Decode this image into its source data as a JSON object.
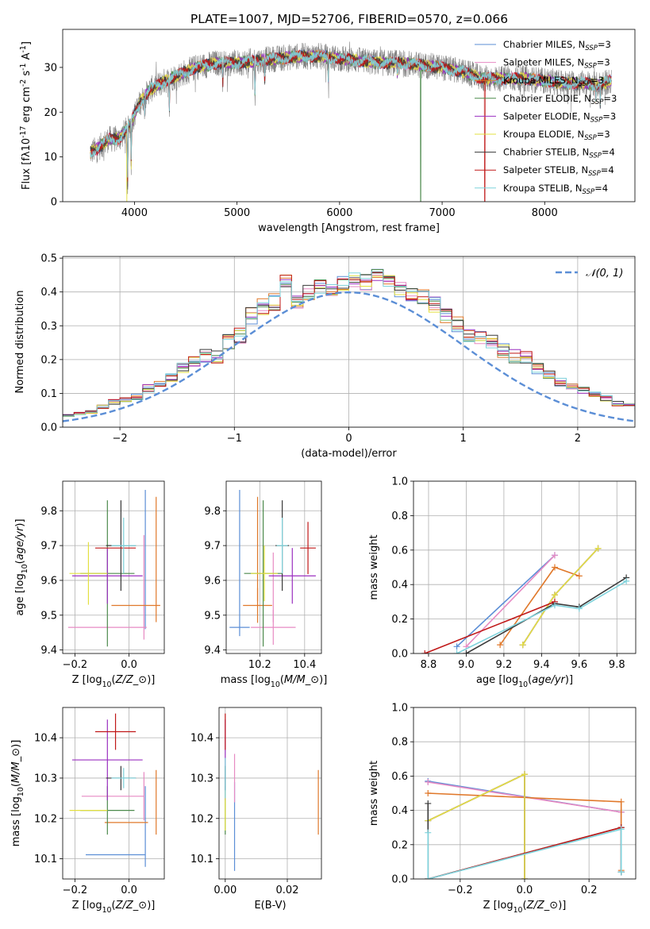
{
  "title": "PLATE=1007, MJD=52706, FIBERID=0570, z=0.066",
  "colors": {
    "Chabrier MILES": "#5b8ed6",
    "Salpeter MILES": "#e78ac3",
    "Kroupa MILES": "#e0782a",
    "Chabrier ELODIE": "#4d8a4d",
    "Salpeter ELODIE": "#9b30c0",
    "Kroupa ELODIE": "#e3e040",
    "Chabrier STELIB": "#3a3a3a",
    "Salpeter STELIB": "#c01818",
    "Kroupa STELIB": "#7fd3dc",
    "data": "#808080",
    "normal": "#5b8ed6",
    "Kroupa ELODIE (points)": "#9acd32"
  },
  "chart_data": [
    {
      "id": "spectrum",
      "type": "line",
      "xlabel": "wavelength [Angstrom, rest frame]",
      "ylabel": "Flux [f$\\lambda$10$^{-17}$ erg cm$^{-2}$ s$^{-1}$ A$^{-1}$]",
      "ylabel_parts": [
        "Flux [f",
        "λ",
        "10",
        "−17",
        " erg cm",
        "−2",
        " s",
        "−1",
        " A",
        "−1",
        "]"
      ],
      "xlim": [
        3300,
        8880
      ],
      "ylim": [
        0,
        38.5
      ],
      "xticks": [
        4000,
        5000,
        6000,
        7000,
        8000
      ],
      "yticks": [
        0,
        10,
        20,
        30
      ],
      "legend_position": "upper right",
      "series_names": [
        "Chabrier MILES",
        "Salpeter MILES",
        "Kroupa MILES",
        "Chabrier ELODIE",
        "Salpeter ELODIE",
        "Kroupa ELODIE",
        "Chabrier STELIB",
        "Salpeter STELIB",
        "Kroupa STELIB"
      ],
      "n_ssp": [
        "3",
        "3",
        "3",
        "3",
        "3",
        "3",
        "4",
        "4",
        "4"
      ],
      "legend_suffix_base": "N",
      "legend_suffix_sub": "SSP",
      "continuum": {
        "wavelength": [
          3570,
          3650,
          3750,
          3850,
          3950,
          4050,
          4150,
          4300,
          4450,
          4600,
          4800,
          5000,
          5200,
          5400,
          5600,
          5800,
          6000,
          6200,
          6400,
          6600,
          6800,
          7000,
          7200,
          7400,
          7600,
          7800,
          8000,
          8200,
          8400,
          8500,
          8650
        ],
        "flux": [
          11,
          12,
          14,
          14,
          17,
          22,
          25,
          27,
          28.5,
          30,
          31,
          31,
          31.5,
          32,
          32.5,
          32.5,
          32,
          31.5,
          31,
          31,
          30.5,
          30,
          29,
          27.5,
          27.5,
          27.5,
          27,
          26.5,
          26.5,
          26,
          27
        ]
      },
      "absorption_dips": [
        {
          "wavelength": 3933,
          "flux": 4
        },
        {
          "wavelength": 3968,
          "flux": 8
        },
        {
          "wavelength": 4102,
          "flux": 20
        },
        {
          "wavelength": 4340,
          "flux": 21
        },
        {
          "wavelength": 4861,
          "flux": 26
        },
        {
          "wavelength": 5175,
          "flux": 23
        },
        {
          "wavelength": 5270,
          "flux": 27
        },
        {
          "wavelength": 5890,
          "flux": 26
        },
        {
          "wavelength": 6563,
          "flux": 28
        },
        {
          "wavelength": 8498,
          "flux": 23
        },
        {
          "wavelength": 8542,
          "flux": 22
        },
        {
          "wavelength": 8662,
          "flux": 23
        }
      ],
      "model_drops": [
        {
          "wavelength": 3925,
          "name": "Kroupa ELODIE"
        },
        {
          "wavelength": 6790,
          "name": "Chabrier ELODIE"
        },
        {
          "wavelength": 7415,
          "name": "Salpeter STELIB"
        }
      ]
    },
    {
      "id": "residuals",
      "type": "step",
      "xlabel": "(data-model)/error",
      "ylabel": "Normed distribution",
      "xlim": [
        -2.5,
        2.5
      ],
      "ylim": [
        0,
        0.505
      ],
      "xticks": [
        -2,
        -1,
        0,
        1,
        2
      ],
      "yticks": [
        0.0,
        0.1,
        0.2,
        0.3,
        0.4,
        0.5
      ],
      "bin_width": 0.1,
      "grid": true,
      "legend": {
        "name": "𝒩(0, 1)",
        "position": "upper right"
      },
      "normal_curve": {
        "mean": 0,
        "sigma": 1,
        "style": "dashed"
      },
      "histogram": [
        0.01,
        0.015,
        0.02,
        0.025,
        0.035,
        0.035,
        0.04,
        0.045,
        0.06,
        0.075,
        0.08,
        0.09,
        0.115,
        0.125,
        0.145,
        0.175,
        0.19,
        0.21,
        0.205,
        0.25,
        0.27,
        0.33,
        0.355,
        0.37,
        0.44,
        0.375,
        0.4,
        0.42,
        0.4,
        0.425,
        0.44,
        0.43,
        0.445,
        0.435,
        0.41,
        0.395,
        0.39,
        0.36,
        0.33,
        0.305,
        0.275,
        0.265,
        0.25,
        0.225,
        0.21,
        0.205,
        0.175,
        0.155,
        0.135,
        0.12,
        0.11,
        0.1,
        0.085,
        0.07,
        0.065,
        0.055,
        0.045,
        0.04,
        0.035,
        0.025,
        0.02
      ]
    },
    {
      "id": "age-vs-Z",
      "type": "errorbar",
      "xlabel": "Z [log$_{10}$($Z/Z_\\odot$)]",
      "ylabel": "age  [log$_{10}$($age/yr$)]",
      "xlim": [
        -0.245,
        0.13
      ],
      "ylim": [
        9.39,
        9.885
      ],
      "xticks": [
        -0.2,
        0.0
      ],
      "yticks": [
        9.4,
        9.5,
        9.6,
        9.7,
        9.8
      ],
      "grid": true,
      "points": [
        {
          "name": "Chabrier MILES",
          "x": 0.06,
          "y": 9.66,
          "xerr": 0.0,
          "yerr": 0.2
        },
        {
          "name": "Salpeter MILES",
          "x": -0.08,
          "y": 9.465,
          "xerr": 0.145,
          "yerr": 0.0
        },
        {
          "name": "Salpeter MILES",
          "x": 0.055,
          "y": 9.58,
          "xerr": 0.0,
          "yerr": 0.15
        },
        {
          "name": "Kroupa MILES",
          "x": 0.025,
          "y": 9.528,
          "xerr": 0.09,
          "yerr": 0.0
        },
        {
          "name": "Kroupa MILES",
          "x": 0.1,
          "y": 9.66,
          "xerr": 0.0,
          "yerr": 0.18
        },
        {
          "name": "Chabrier ELODIE",
          "x": -0.08,
          "y": 9.62,
          "xerr": 0.1,
          "yerr": 0.21
        },
        {
          "name": "Salpeter ELODIE",
          "x": -0.08,
          "y": 9.613,
          "xerr": 0.13,
          "yerr": 0.08
        },
        {
          "name": "Kroupa ELODIE",
          "x": -0.15,
          "y": 9.62,
          "xerr": 0.07,
          "yerr": 0.09
        },
        {
          "name": "Chabrier STELIB",
          "x": -0.03,
          "y": 9.7,
          "xerr": 0.055,
          "yerr": 0.13
        },
        {
          "name": "Salpeter STELIB",
          "x": -0.05,
          "y": 9.693,
          "xerr": 0.075,
          "yerr": 0.0
        },
        {
          "name": "Kroupa STELIB",
          "x": -0.02,
          "y": 9.7,
          "xerr": 0.045,
          "yerr": 0.08
        }
      ]
    },
    {
      "id": "age-vs-mass",
      "type": "errorbar",
      "xlabel": "mass [log$_{10}$($M/M_\\odot$)]",
      "ylabel": "",
      "xlim": [
        10.05,
        10.475
      ],
      "ylim": [
        9.39,
        9.885
      ],
      "xticks": [
        10.2,
        10.4
      ],
      "yticks": [
        9.4,
        9.5,
        9.6,
        9.7,
        9.8
      ],
      "grid": true,
      "points": [
        {
          "name": "Chabrier MILES",
          "x": 10.11,
          "y": 9.465,
          "xerr": 0.045,
          "yerr": 0.0
        },
        {
          "name": "Chabrier MILES",
          "x": 10.11,
          "y": 9.65,
          "xerr": 0.0,
          "yerr": 0.21
        },
        {
          "name": "Salpeter MILES",
          "x": 10.26,
          "y": 9.465,
          "xerr": 0.1,
          "yerr": 0.05
        },
        {
          "name": "Salpeter MILES",
          "x": 10.26,
          "y": 9.58,
          "xerr": 0.0,
          "yerr": 0.1
        },
        {
          "name": "Kroupa MILES",
          "x": 10.19,
          "y": 9.528,
          "xerr": 0.065,
          "yerr": 0.05
        },
        {
          "name": "Kroupa MILES",
          "x": 10.19,
          "y": 9.69,
          "xerr": 0.0,
          "yerr": 0.15
        },
        {
          "name": "Chabrier ELODIE",
          "x": 10.215,
          "y": 9.62,
          "xerr": 0.085,
          "yerr": 0.21
        },
        {
          "name": "Salpeter ELODIE",
          "x": 10.345,
          "y": 9.613,
          "xerr": 0.105,
          "yerr": 0.08
        },
        {
          "name": "Kroupa ELODIE",
          "x": 10.22,
          "y": 9.62,
          "xerr": 0.06,
          "yerr": 0.08
        },
        {
          "name": "Chabrier STELIB",
          "x": 10.3,
          "y": 9.7,
          "xerr": 0.03,
          "yerr": 0.13
        },
        {
          "name": "Salpeter STELIB",
          "x": 10.415,
          "y": 9.693,
          "xerr": 0.035,
          "yerr": 0.075
        },
        {
          "name": "Kroupa STELIB",
          "x": 10.3,
          "y": 9.7,
          "xerr": 0.025,
          "yerr": 0.08
        }
      ]
    },
    {
      "id": "mass-weight-vs-age",
      "type": "line",
      "xlabel": "age  [log$_{10}$($age/yr$)]",
      "ylabel": "mass weight",
      "xlim": [
        8.72,
        9.9
      ],
      "ylim": [
        0,
        1.0
      ],
      "xticks": [
        8.8,
        9.0,
        9.2,
        9.4,
        9.6,
        9.8
      ],
      "yticks": [
        0.0,
        0.2,
        0.4,
        0.6,
        0.8,
        1.0
      ],
      "grid": true,
      "series": [
        {
          "name": "Chabrier MILES",
          "x": [
            8.95,
            9.47
          ],
          "values": [
            0.04,
            0.57
          ]
        },
        {
          "name": "Salpeter MILES",
          "x": [
            9.0,
            9.47
          ],
          "values": [
            0.04,
            0.57
          ]
        },
        {
          "name": "Kroupa MILES",
          "x": [
            9.18,
            9.47,
            9.6
          ],
          "values": [
            0.05,
            0.5,
            0.45
          ]
        },
        {
          "name": "Chabrier ELODIE",
          "x": [
            9.3,
            9.47,
            9.7
          ],
          "values": [
            0.05,
            0.34,
            0.61
          ]
        },
        {
          "name": "Salpeter ELODIE",
          "x": [
            9.3,
            9.47,
            9.7
          ],
          "values": [
            0.05,
            0.34,
            0.61
          ]
        },
        {
          "name": "Kroupa ELODIE",
          "x": [
            9.3,
            9.47,
            9.7
          ],
          "values": [
            0.05,
            0.34,
            0.61
          ]
        },
        {
          "name": "Chabrier STELIB",
          "x": [
            9.0,
            9.47,
            9.6,
            9.85
          ],
          "values": [
            0.0,
            0.29,
            0.27,
            0.44
          ]
        },
        {
          "name": "Salpeter STELIB",
          "x": [
            8.78,
            9.47
          ],
          "values": [
            0.0,
            0.3
          ]
        },
        {
          "name": "Kroupa STELIB",
          "x": [
            8.95,
            9.47,
            9.6,
            9.85
          ],
          "values": [
            0.0,
            0.28,
            0.26,
            0.42
          ]
        }
      ]
    },
    {
      "id": "mass-vs-Z",
      "type": "errorbar",
      "xlabel": "Z [log$_{10}$($Z/Z_\\odot$)]",
      "ylabel": "mass [log$_{10}$($M/M_\\odot$)]",
      "xlim": [
        -0.245,
        0.13
      ],
      "ylim": [
        10.05,
        10.475
      ],
      "xticks": [
        -0.2,
        0.0
      ],
      "yticks": [
        10.1,
        10.2,
        10.3,
        10.4
      ],
      "grid": true,
      "points": [
        {
          "name": "Chabrier MILES",
          "x": -0.05,
          "y": 10.11,
          "xerr": 0.11,
          "yerr": 0.0
        },
        {
          "name": "Chabrier MILES",
          "x": 0.06,
          "y": 10.18,
          "xerr": 0.0,
          "yerr": 0.1
        },
        {
          "name": "Salpeter MILES",
          "x": -0.06,
          "y": 10.255,
          "xerr": 0.115,
          "yerr": 0.0
        },
        {
          "name": "Salpeter MILES",
          "x": 0.055,
          "y": 10.255,
          "xerr": 0.0,
          "yerr": 0.06
        },
        {
          "name": "Kroupa MILES",
          "x": -0.01,
          "y": 10.19,
          "xerr": 0.08,
          "yerr": 0.0
        },
        {
          "name": "Kroupa MILES",
          "x": 0.1,
          "y": 10.24,
          "xerr": 0.0,
          "yerr": 0.08
        },
        {
          "name": "Chabrier ELODIE",
          "x": -0.08,
          "y": 10.22,
          "xerr": 0.1,
          "yerr": 0.06
        },
        {
          "name": "Salpeter ELODIE",
          "x": -0.08,
          "y": 10.345,
          "xerr": 0.13,
          "yerr": 0.1
        },
        {
          "name": "Kroupa ELODIE",
          "x": -0.15,
          "y": 10.22,
          "xerr": 0.07,
          "yerr": 0.0
        },
        {
          "name": "Chabrier STELIB",
          "x": -0.03,
          "y": 10.3,
          "xerr": 0.055,
          "yerr": 0.03
        },
        {
          "name": "Salpeter STELIB",
          "x": -0.05,
          "y": 10.415,
          "xerr": 0.075,
          "yerr": 0.045
        },
        {
          "name": "Kroupa STELIB",
          "x": -0.02,
          "y": 10.3,
          "xerr": 0.045,
          "yerr": 0.025
        }
      ]
    },
    {
      "id": "mass-vs-EBV",
      "type": "errorbar",
      "xlabel": "E(B-V)",
      "ylabel": "",
      "xlim": [
        -0.002,
        0.031
      ],
      "ylim": [
        10.05,
        10.475
      ],
      "xticks": [
        0.0,
        0.02
      ],
      "yticks": [
        10.1,
        10.2,
        10.3,
        10.4
      ],
      "grid": true,
      "points": [
        {
          "name": "Chabrier MILES",
          "x": 0.003,
          "y": 10.18,
          "xerr": 0.0,
          "yerr": 0.11
        },
        {
          "name": "Salpeter MILES",
          "x": 0.003,
          "y": 10.3,
          "xerr": 0.0,
          "yerr": 0.06
        },
        {
          "name": "Kroupa MILES",
          "x": 0.03,
          "y": 10.24,
          "xerr": 0.0,
          "yerr": 0.08
        },
        {
          "name": "Chabrier ELODIE",
          "x": 0.0,
          "y": 10.22,
          "xerr": 0.0,
          "yerr": 0.06
        },
        {
          "name": "Salpeter ELODIE",
          "x": 0.0,
          "y": 10.345,
          "xerr": 0.0,
          "yerr": 0.1
        },
        {
          "name": "Kroupa ELODIE",
          "x": 0.0,
          "y": 10.22,
          "xerr": 0.0,
          "yerr": 0.05
        },
        {
          "name": "Chabrier STELIB",
          "x": 0.0,
          "y": 10.3,
          "xerr": 0.0,
          "yerr": 0.03
        },
        {
          "name": "Salpeter STELIB",
          "x": 0.0,
          "y": 10.415,
          "xerr": 0.0,
          "yerr": 0.045
        },
        {
          "name": "Kroupa STELIB",
          "x": 0.0,
          "y": 10.3,
          "xerr": 0.0,
          "yerr": 0.05
        }
      ]
    },
    {
      "id": "mass-weight-vs-Z",
      "type": "line",
      "xlabel": "Z [log$_{10}$($Z/Z_\\odot$)]",
      "ylabel": "mass weight",
      "xlim": [
        -0.345,
        0.345
      ],
      "ylim": [
        0,
        1.0
      ],
      "xticks": [
        -0.2,
        0.0,
        0.2
      ],
      "yticks": [
        0.0,
        0.2,
        0.4,
        0.6,
        0.8,
        1.0
      ],
      "grid": true,
      "series": [
        {
          "name": "Chabrier MILES",
          "x": [
            -0.3,
            0.3,
            0.3
          ],
          "values": [
            0.57,
            0.39,
            0.04
          ]
        },
        {
          "name": "Salpeter MILES",
          "x": [
            -0.3,
            0.3,
            0.3
          ],
          "values": [
            0.565,
            0.39,
            0.04
          ]
        },
        {
          "name": "Kroupa MILES",
          "x": [
            -0.3,
            0.3,
            0.3
          ],
          "values": [
            0.5,
            0.45,
            0.05
          ]
        },
        {
          "name": "Chabrier ELODIE",
          "x": [
            -0.3,
            0.0,
            0.0
          ],
          "values": [
            0.34,
            0.61,
            0.0
          ]
        },
        {
          "name": "Salpeter ELODIE",
          "x": [
            -0.3,
            0.0,
            0.0
          ],
          "values": [
            0.34,
            0.61,
            0.0
          ]
        },
        {
          "name": "Kroupa ELODIE",
          "x": [
            -0.3,
            0.0,
            0.0
          ],
          "values": [
            0.34,
            0.61,
            0.0
          ]
        },
        {
          "name": "Chabrier STELIB",
          "x": [
            -0.3,
            -0.3,
            0.3,
            0.3
          ],
          "values": [
            0.44,
            0.0,
            0.3,
            0.04
          ]
        },
        {
          "name": "Salpeter STELIB",
          "x": [
            -0.3,
            0.3
          ],
          "values": [
            0.0,
            0.3
          ]
        },
        {
          "name": "Kroupa STELIB",
          "x": [
            -0.3,
            -0.3,
            0.3,
            0.3
          ],
          "values": [
            0.27,
            0.0,
            0.29,
            0.04
          ]
        }
      ]
    }
  ]
}
